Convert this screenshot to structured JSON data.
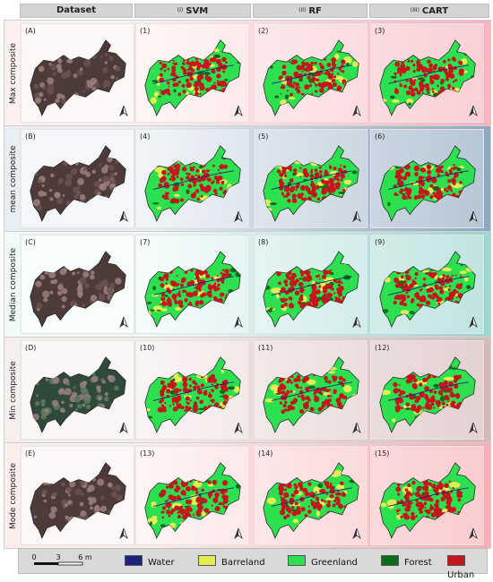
{
  "headers": {
    "dataset": "Dataset",
    "svm": {
      "roman": "(I)",
      "label": "SVM"
    },
    "rf": {
      "roman": "(II)",
      "label": "RF"
    },
    "cart": {
      "roman": "(III)",
      "label": "CART"
    }
  },
  "rows": [
    {
      "label": "Max composite",
      "ids": [
        "(A)",
        "(1)",
        "(2)",
        "(3)"
      ],
      "bg_light": "#fdf0f0",
      "bg_dark": "#f7b5bf"
    },
    {
      "label": "mean composite",
      "ids": [
        "(B)",
        "(4)",
        "(5)",
        "(6)"
      ],
      "bg_light": "#e9eef4",
      "bg_dark": "#8fa8bf"
    },
    {
      "label": "Median composite",
      "ids": [
        "(C)",
        "(7)",
        "(8)",
        "(9)"
      ],
      "bg_light": "#f0faf9",
      "bg_dark": "#9fd6d0"
    },
    {
      "label": "Min composite",
      "ids": [
        "(D)",
        "(10)",
        "(11)",
        "(12)"
      ],
      "bg_light": "#f7eeee",
      "bg_dark": "#d6b9b9"
    },
    {
      "label": "Mode composite",
      "ids": [
        "(E)",
        "(13)",
        "(14)",
        "(15)"
      ],
      "bg_light": "#fdeeee",
      "bg_dark": "#f7b0b5"
    }
  ],
  "scalebar": {
    "zero": "0",
    "mid": "3",
    "end": "6 m"
  },
  "legend": [
    {
      "label": "Water",
      "color": "#1a237e"
    },
    {
      "label": "Barreland",
      "color": "#e2ee52"
    },
    {
      "label": "Greenland",
      "color": "#2de04f"
    },
    {
      "label": "Forest",
      "color": "#0d6b1e"
    },
    {
      "label": "Urban",
      "color": "#c4161c"
    }
  ],
  "colors": {
    "satellite_light": "#9e7f80",
    "satellite_dark": "#4d3b3a",
    "satellite_green": "#2f4a3a"
  }
}
